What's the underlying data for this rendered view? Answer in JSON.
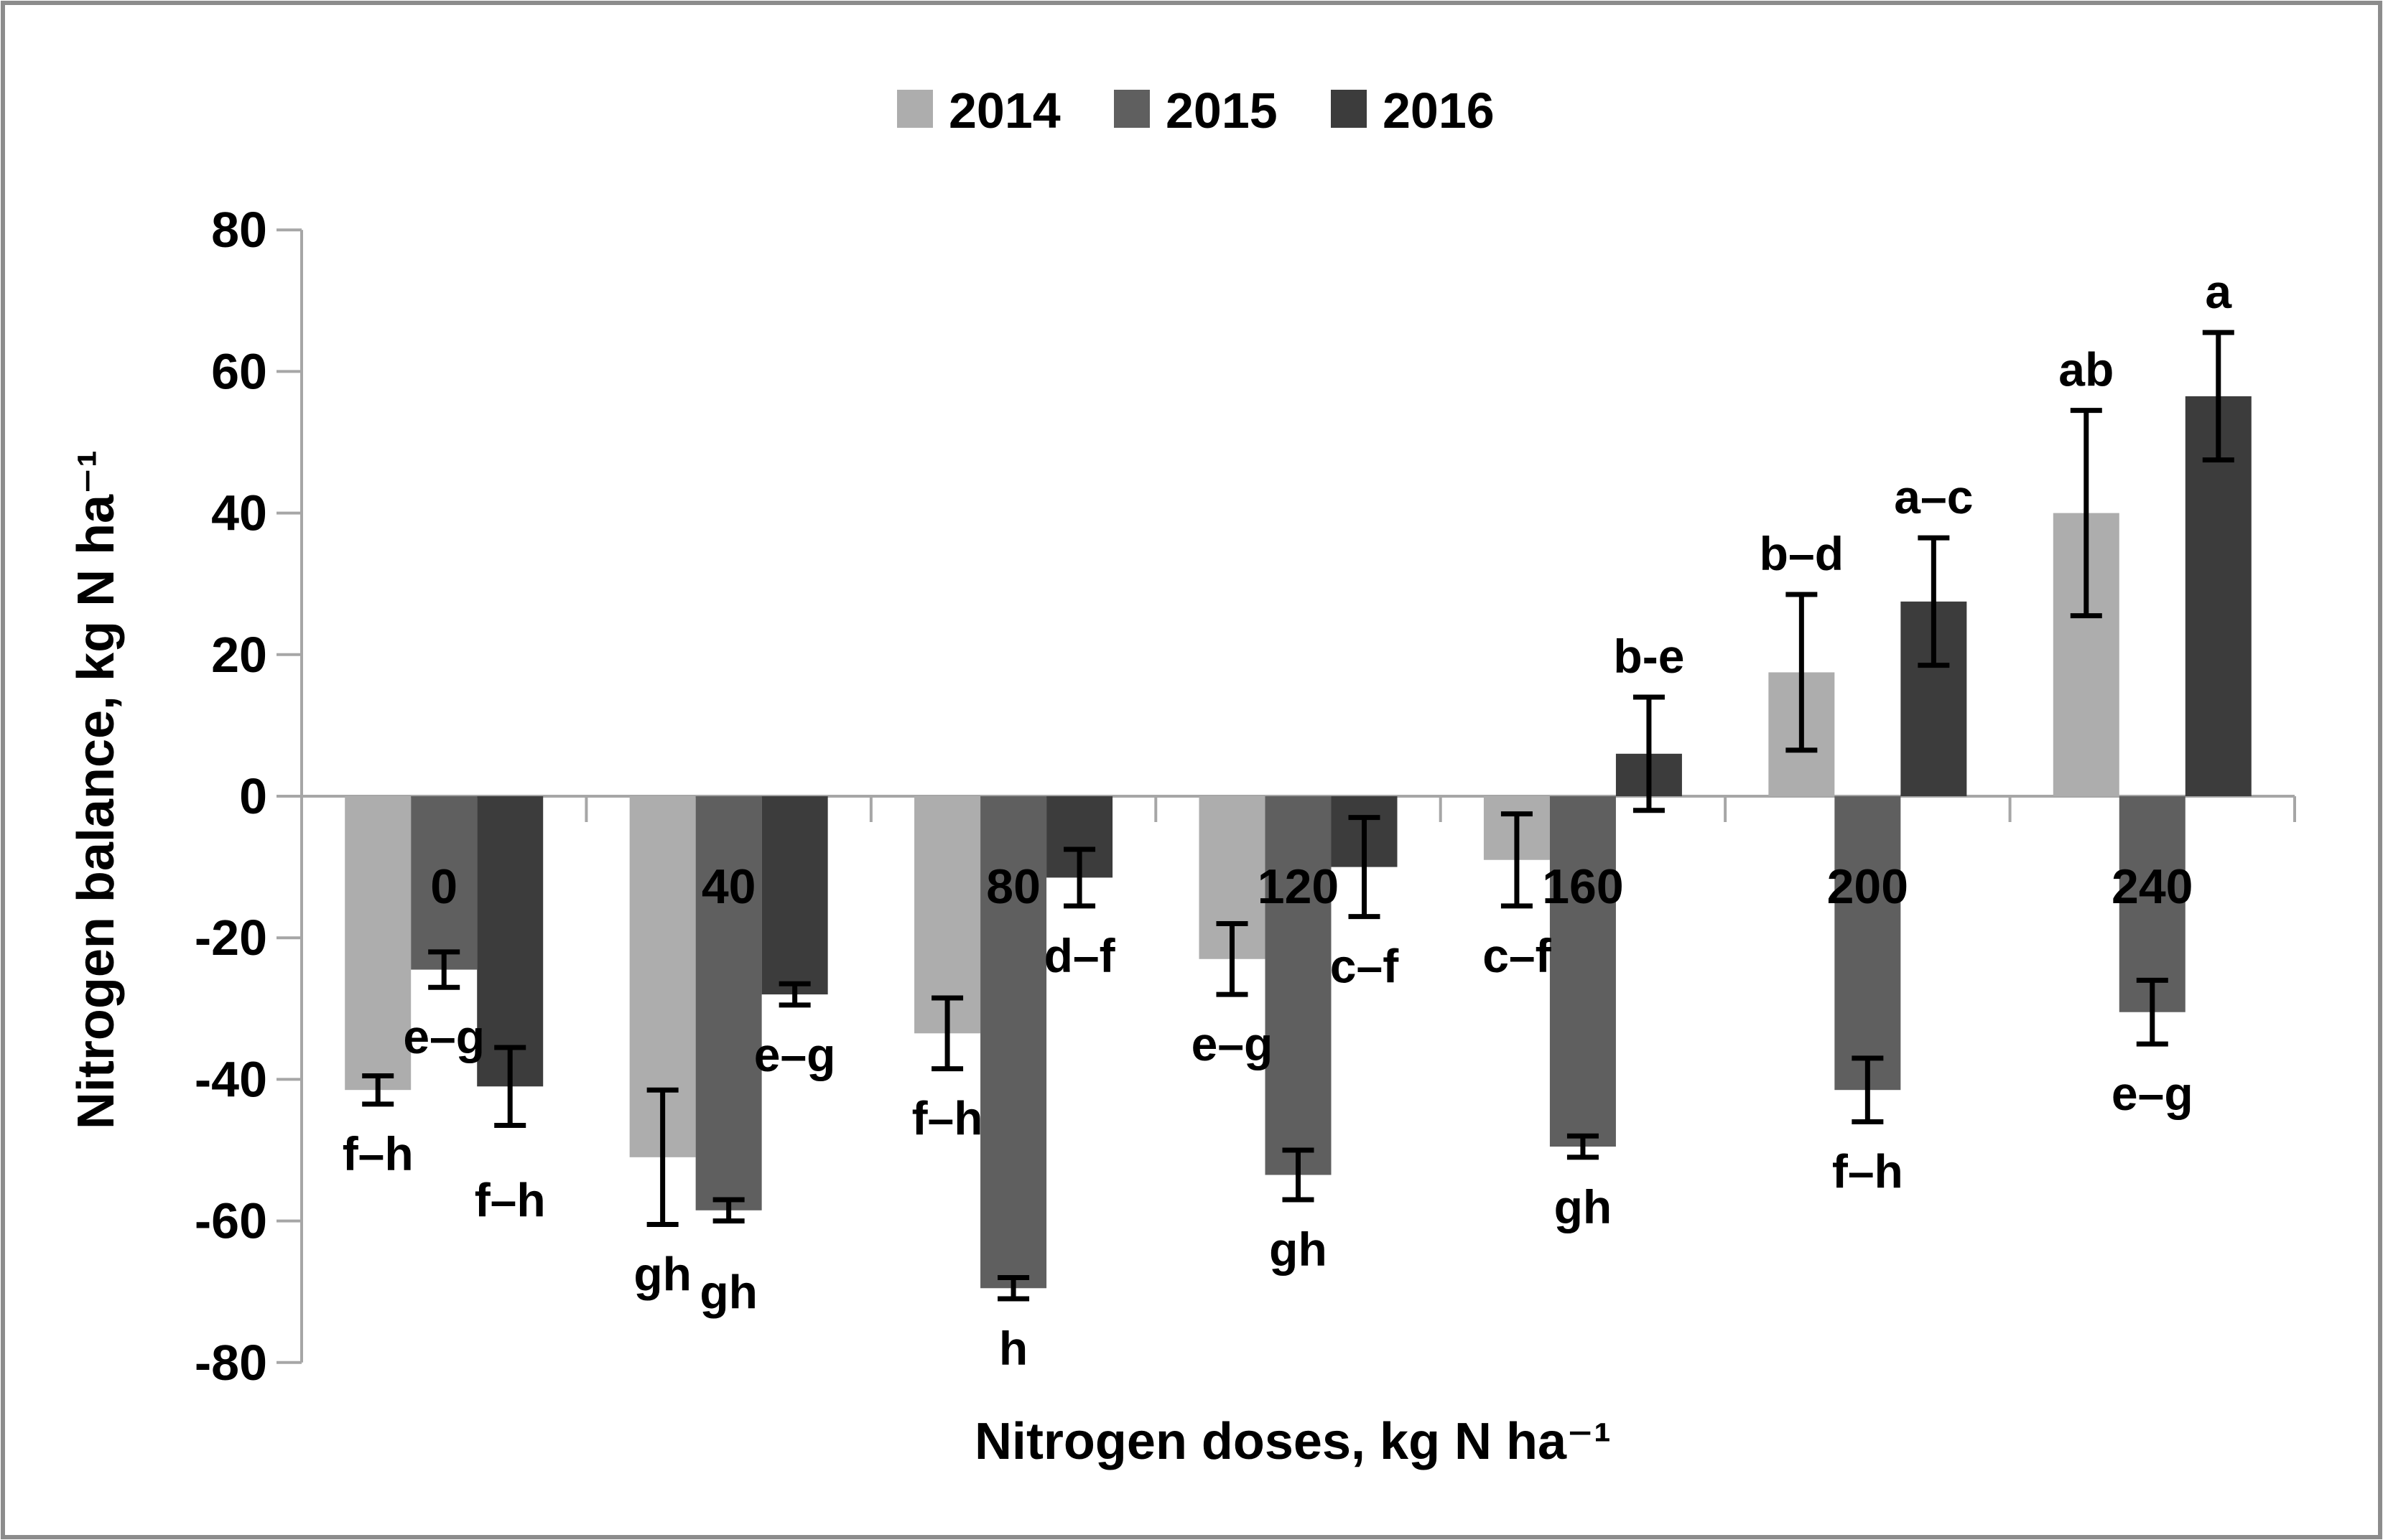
{
  "figure": {
    "background": "#ffffff",
    "border_color": "#8c8c8c",
    "text_color": "#000000"
  },
  "chart_data": {
    "type": "bar",
    "title": "",
    "xlabel": "Nitrogen doses, kg N ha⁻¹",
    "ylabel": "Nitrogen balance, kg N ha⁻¹",
    "categories": [
      "0",
      "40",
      "80",
      "120",
      "160",
      "200",
      "240"
    ],
    "ylim": [
      -80,
      80
    ],
    "ytick_step": 20,
    "grid": false,
    "legend_position": "top-center",
    "axis_color": "#a6a6a6",
    "error_bar_color": "#000000",
    "series": [
      {
        "name": "2014",
        "color": "#adadad",
        "values": [
          -41.5,
          -51,
          -33.5,
          -23,
          -9,
          17.5,
          40
        ],
        "errors": [
          2,
          9.5,
          5,
          5,
          6.5,
          11,
          14.5
        ],
        "letters": [
          "f–h",
          "gh",
          "f–h",
          "e–g",
          "c–f",
          "b–d",
          "ab"
        ]
      },
      {
        "name": "2015",
        "color": "#5f5f5f",
        "values": [
          -24.5,
          -58.5,
          -69.5,
          -53.5,
          -49.5,
          -41.5,
          -30.5
        ],
        "errors": [
          2.5,
          1.5,
          1.5,
          3.5,
          1.5,
          4.5,
          4.5
        ],
        "letters": [
          "e–g",
          "gh",
          "h",
          "gh",
          "gh",
          "f–h",
          "e–g"
        ]
      },
      {
        "name": "2016",
        "color": "#3c3c3c",
        "values": [
          -41,
          -28,
          -11.5,
          -10,
          6,
          27.5,
          56.5
        ],
        "errors": [
          5.5,
          1.5,
          4,
          7,
          8,
          9,
          9
        ],
        "letters": [
          "f–h",
          "e–g",
          "d–f",
          "c–f",
          "b-e",
          "a–c",
          "a"
        ]
      }
    ],
    "letter_nudges": [
      {
        "series": 2,
        "category": 0,
        "dy": 35
      },
      {
        "series": 1,
        "category": 1,
        "dy": 30
      }
    ]
  }
}
